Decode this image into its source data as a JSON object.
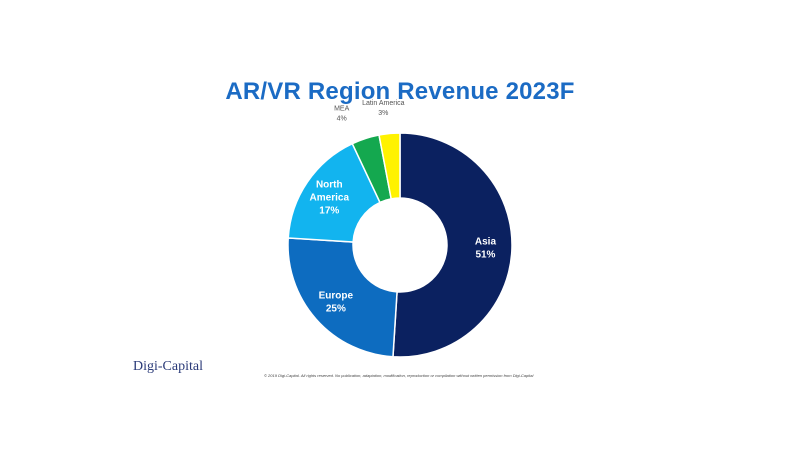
{
  "chart_data": {
    "type": "pie",
    "title": "AR/VR Region Revenue 2023F",
    "donut": true,
    "categories": [
      "Asia",
      "Europe",
      "North America",
      "MEA",
      "Latin America"
    ],
    "values": [
      51,
      25,
      17,
      4,
      3
    ],
    "labels": [
      "51%",
      "25%",
      "17%",
      "4%",
      "3%"
    ],
    "colors": [
      "#0b2160",
      "#0d6cc0",
      "#12b4ef",
      "#14a84f",
      "#fff200"
    ]
  },
  "footer": {
    "logo": "Digi-Capital",
    "copyright": "© 2019 Digi-Capital. All rights reserved. No publication, adaptation, modification, reproduction or compilation without written permission from Digi-Capital"
  }
}
